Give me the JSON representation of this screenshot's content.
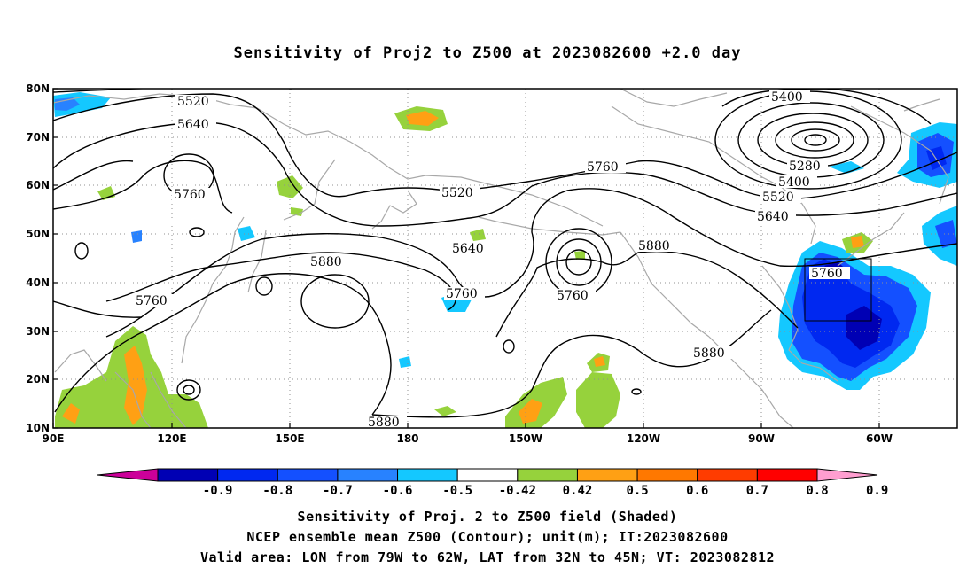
{
  "title": "Sensitivity of Proj2 to Z500 at 2023082600 +2.0 day",
  "axes": {
    "x_ticks": [
      "90E",
      "120E",
      "150E",
      "180",
      "150W",
      "120W",
      "90W",
      "60W"
    ],
    "y_ticks": [
      "80N",
      "70N",
      "60N",
      "50N",
      "40N",
      "30N",
      "20N",
      "10N"
    ]
  },
  "contour_labels": [
    "5520",
    "5640",
    "5760",
    "5400",
    "5280",
    "5400",
    "5520",
    "5640",
    "5760",
    "5880",
    "5760",
    "5640",
    "5520",
    "5760",
    "5760",
    "5880",
    "5760",
    "5880",
    "5880"
  ],
  "colorbar": {
    "labels": [
      "-0.9",
      "-0.8",
      "-0.7",
      "-0.6",
      "-0.5",
      "-0.42",
      "0.42",
      "0.5",
      "0.6",
      "0.7",
      "0.8",
      "0.9"
    ],
    "colors": [
      "#cc0099",
      "#0000b4",
      "#0028f0",
      "#1450ff",
      "#2882ff",
      "#14c8ff",
      "#ffffff",
      "#96d23c",
      "#ffa014",
      "#ff7800",
      "#ff3c00",
      "#ff0000",
      "#ff9ed0"
    ]
  },
  "valid_box": {
    "lon_west": "79W",
    "lon_east": "62W",
    "lat_south": "32N",
    "lat_north": "45N"
  },
  "captions": {
    "line1": "Sensitivity of Proj. 2 to Z500 field (Shaded)",
    "line2": "NCEP ensemble mean Z500 (Contour); unit(m); IT:2023082600",
    "line3": "Valid area: LON from 79W to 62W, LAT from 32N to 45N; VT: 2023082812"
  }
}
